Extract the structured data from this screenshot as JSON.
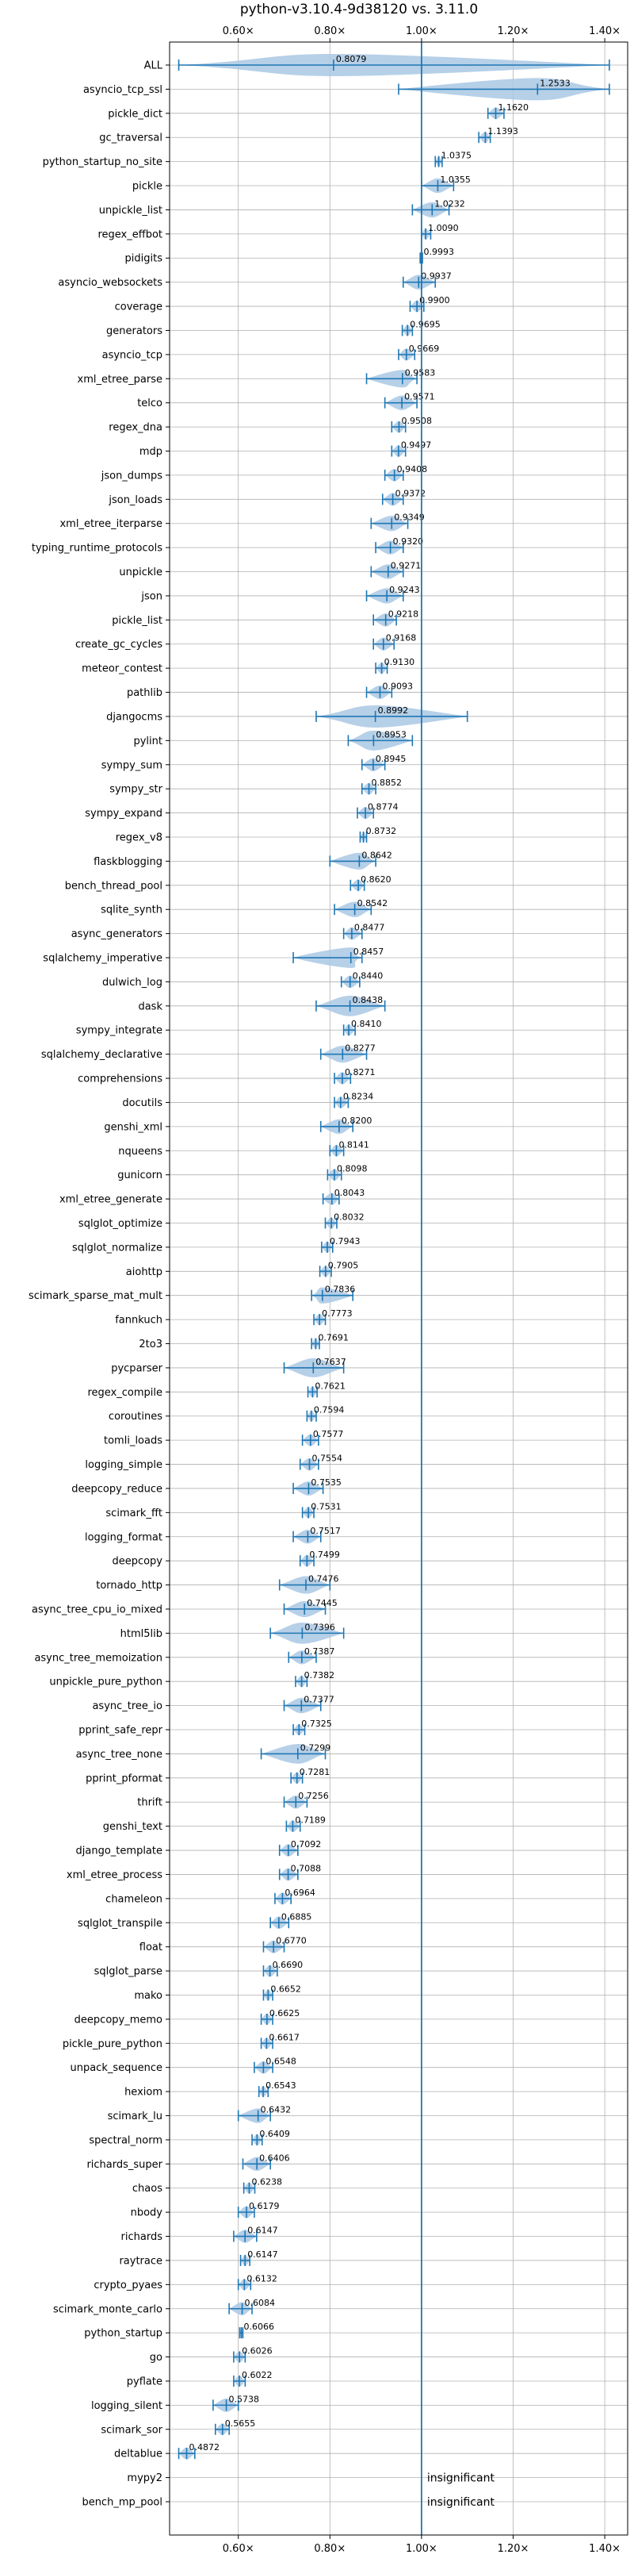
{
  "chart_data": {
    "type": "violin",
    "title": "python-v3.10.4-9d38120 vs. 3.11.0",
    "xlim": [
      0.45,
      1.45
    ],
    "x_ticks": [
      0.6,
      0.8,
      1.0,
      1.2,
      1.4
    ],
    "x_tick_labels": [
      "0.60×",
      "0.80×",
      "1.00×",
      "1.20×",
      "1.40×"
    ],
    "x_tick_positions": [
      "top",
      "bottom"
    ],
    "reference_line": 1.0,
    "grid": true,
    "color": "#1f77b4",
    "violin_fill": "#a9c8e4",
    "insignificant_label": "insignificant",
    "benchmarks": [
      {
        "name": "ALL",
        "value": 0.8079,
        "label": "0.8079",
        "lo": 0.47,
        "hi": 1.41
      },
      {
        "name": "asyncio_tcp_ssl",
        "value": 1.2533,
        "label": "1.2533",
        "lo": 0.95,
        "hi": 1.41
      },
      {
        "name": "pickle_dict",
        "value": 1.162,
        "label": "1.1620",
        "lo": 1.145,
        "hi": 1.18
      },
      {
        "name": "gc_traversal",
        "value": 1.1393,
        "label": "1.1393",
        "lo": 1.125,
        "hi": 1.15
      },
      {
        "name": "python_startup_no_site",
        "value": 1.0375,
        "label": "1.0375",
        "lo": 1.03,
        "hi": 1.045
      },
      {
        "name": "pickle",
        "value": 1.0355,
        "label": "1.0355",
        "lo": 1.0,
        "hi": 1.07
      },
      {
        "name": "unpickle_list",
        "value": 1.0232,
        "label": "1.0232",
        "lo": 0.98,
        "hi": 1.06
      },
      {
        "name": "regex_effbot",
        "value": 1.009,
        "label": "1.0090",
        "lo": 1.0,
        "hi": 1.02
      },
      {
        "name": "pidigits",
        "value": 0.9993,
        "label": "0.9993",
        "lo": 0.997,
        "hi": 1.002
      },
      {
        "name": "asyncio_websockets",
        "value": 0.9937,
        "label": "0.9937",
        "lo": 0.96,
        "hi": 1.03
      },
      {
        "name": "coverage",
        "value": 0.99,
        "label": "0.9900",
        "lo": 0.975,
        "hi": 1.005
      },
      {
        "name": "generators",
        "value": 0.9695,
        "label": "0.9695",
        "lo": 0.958,
        "hi": 0.98
      },
      {
        "name": "asyncio_tcp",
        "value": 0.9669,
        "label": "0.9669",
        "lo": 0.95,
        "hi": 0.985
      },
      {
        "name": "xml_etree_parse",
        "value": 0.9583,
        "label": "0.9583",
        "lo": 0.88,
        "hi": 0.99
      },
      {
        "name": "telco",
        "value": 0.9571,
        "label": "0.9571",
        "lo": 0.92,
        "hi": 0.99
      },
      {
        "name": "regex_dna",
        "value": 0.9508,
        "label": "0.9508",
        "lo": 0.935,
        "hi": 0.965
      },
      {
        "name": "mdp",
        "value": 0.9497,
        "label": "0.9497",
        "lo": 0.935,
        "hi": 0.965
      },
      {
        "name": "json_dumps",
        "value": 0.9408,
        "label": "0.9408",
        "lo": 0.92,
        "hi": 0.96
      },
      {
        "name": "json_loads",
        "value": 0.9372,
        "label": "0.9372",
        "lo": 0.915,
        "hi": 0.96
      },
      {
        "name": "xml_etree_iterparse",
        "value": 0.9349,
        "label": "0.9349",
        "lo": 0.89,
        "hi": 0.97
      },
      {
        "name": "typing_runtime_protocols",
        "value": 0.932,
        "label": "0.9320",
        "lo": 0.9,
        "hi": 0.96
      },
      {
        "name": "unpickle",
        "value": 0.9271,
        "label": "0.9271",
        "lo": 0.89,
        "hi": 0.96
      },
      {
        "name": "json",
        "value": 0.9243,
        "label": "0.9243",
        "lo": 0.88,
        "hi": 0.96
      },
      {
        "name": "pickle_list",
        "value": 0.9218,
        "label": "0.9218",
        "lo": 0.895,
        "hi": 0.945
      },
      {
        "name": "create_gc_cycles",
        "value": 0.9168,
        "label": "0.9168",
        "lo": 0.895,
        "hi": 0.94
      },
      {
        "name": "meteor_contest",
        "value": 0.913,
        "label": "0.9130",
        "lo": 0.9,
        "hi": 0.925
      },
      {
        "name": "pathlib",
        "value": 0.9093,
        "label": "0.9093",
        "lo": 0.88,
        "hi": 0.935
      },
      {
        "name": "djangocms",
        "value": 0.8992,
        "label": "0.8992",
        "lo": 0.77,
        "hi": 1.1
      },
      {
        "name": "pylint",
        "value": 0.8953,
        "label": "0.8953",
        "lo": 0.84,
        "hi": 0.98
      },
      {
        "name": "sympy_sum",
        "value": 0.8945,
        "label": "0.8945",
        "lo": 0.87,
        "hi": 0.92
      },
      {
        "name": "sympy_str",
        "value": 0.8852,
        "label": "0.8852",
        "lo": 0.87,
        "hi": 0.9
      },
      {
        "name": "sympy_expand",
        "value": 0.8774,
        "label": "0.8774",
        "lo": 0.86,
        "hi": 0.895
      },
      {
        "name": "regex_v8",
        "value": 0.8732,
        "label": "0.8732",
        "lo": 0.866,
        "hi": 0.88
      },
      {
        "name": "flaskblogging",
        "value": 0.8642,
        "label": "0.8642",
        "lo": 0.8,
        "hi": 0.9
      },
      {
        "name": "bench_thread_pool",
        "value": 0.862,
        "label": "0.8620",
        "lo": 0.845,
        "hi": 0.875
      },
      {
        "name": "sqlite_synth",
        "value": 0.8542,
        "label": "0.8542",
        "lo": 0.81,
        "hi": 0.89
      },
      {
        "name": "async_generators",
        "value": 0.8477,
        "label": "0.8477",
        "lo": 0.83,
        "hi": 0.87
      },
      {
        "name": "sqlalchemy_imperative",
        "value": 0.8457,
        "label": "0.8457",
        "lo": 0.72,
        "hi": 0.87
      },
      {
        "name": "dulwich_log",
        "value": 0.844,
        "label": "0.8440",
        "lo": 0.825,
        "hi": 0.865
      },
      {
        "name": "dask",
        "value": 0.8438,
        "label": "0.8438",
        "lo": 0.77,
        "hi": 0.92
      },
      {
        "name": "sympy_integrate",
        "value": 0.841,
        "label": "0.8410",
        "lo": 0.83,
        "hi": 0.855
      },
      {
        "name": "sqlalchemy_declarative",
        "value": 0.8277,
        "label": "0.8277",
        "lo": 0.78,
        "hi": 0.88
      },
      {
        "name": "comprehensions",
        "value": 0.8271,
        "label": "0.8271",
        "lo": 0.81,
        "hi": 0.845
      },
      {
        "name": "docutils",
        "value": 0.8234,
        "label": "0.8234",
        "lo": 0.81,
        "hi": 0.84
      },
      {
        "name": "genshi_xml",
        "value": 0.82,
        "label": "0.8200",
        "lo": 0.78,
        "hi": 0.85
      },
      {
        "name": "nqueens",
        "value": 0.8141,
        "label": "0.8141",
        "lo": 0.8,
        "hi": 0.83
      },
      {
        "name": "gunicorn",
        "value": 0.8098,
        "label": "0.8098",
        "lo": 0.795,
        "hi": 0.825
      },
      {
        "name": "xml_etree_generate",
        "value": 0.8043,
        "label": "0.8043",
        "lo": 0.785,
        "hi": 0.82
      },
      {
        "name": "sqlglot_optimize",
        "value": 0.8032,
        "label": "0.8032",
        "lo": 0.79,
        "hi": 0.815
      },
      {
        "name": "sqlglot_normalize",
        "value": 0.7943,
        "label": "0.7943",
        "lo": 0.782,
        "hi": 0.806
      },
      {
        "name": "aiohttp",
        "value": 0.7905,
        "label": "0.7905",
        "lo": 0.778,
        "hi": 0.803
      },
      {
        "name": "scimark_sparse_mat_mult",
        "value": 0.7836,
        "label": "0.7836",
        "lo": 0.76,
        "hi": 0.85
      },
      {
        "name": "fannkuch",
        "value": 0.7773,
        "label": "0.7773",
        "lo": 0.765,
        "hi": 0.79
      },
      {
        "name": "2to3",
        "value": 0.7691,
        "label": "0.7691",
        "lo": 0.76,
        "hi": 0.777
      },
      {
        "name": "pycparser",
        "value": 0.7637,
        "label": "0.7637",
        "lo": 0.7,
        "hi": 0.83
      },
      {
        "name": "regex_compile",
        "value": 0.7621,
        "label": "0.7621",
        "lo": 0.752,
        "hi": 0.772
      },
      {
        "name": "coroutines",
        "value": 0.7594,
        "label": "0.7594",
        "lo": 0.75,
        "hi": 0.77
      },
      {
        "name": "tomli_loads",
        "value": 0.7577,
        "label": "0.7577",
        "lo": 0.74,
        "hi": 0.775
      },
      {
        "name": "logging_simple",
        "value": 0.7554,
        "label": "0.7554",
        "lo": 0.735,
        "hi": 0.775
      },
      {
        "name": "deepcopy_reduce",
        "value": 0.7535,
        "label": "0.7535",
        "lo": 0.72,
        "hi": 0.785
      },
      {
        "name": "scimark_fft",
        "value": 0.7531,
        "label": "0.7531",
        "lo": 0.74,
        "hi": 0.765
      },
      {
        "name": "logging_format",
        "value": 0.7517,
        "label": "0.7517",
        "lo": 0.72,
        "hi": 0.78
      },
      {
        "name": "deepcopy",
        "value": 0.7499,
        "label": "0.7499",
        "lo": 0.735,
        "hi": 0.765
      },
      {
        "name": "tornado_http",
        "value": 0.7476,
        "label": "0.7476",
        "lo": 0.69,
        "hi": 0.8
      },
      {
        "name": "async_tree_cpu_io_mixed",
        "value": 0.7445,
        "label": "0.7445",
        "lo": 0.7,
        "hi": 0.79
      },
      {
        "name": "html5lib",
        "value": 0.7396,
        "label": "0.7396",
        "lo": 0.67,
        "hi": 0.83
      },
      {
        "name": "async_tree_memoization",
        "value": 0.7387,
        "label": "0.7387",
        "lo": 0.71,
        "hi": 0.77
      },
      {
        "name": "unpickle_pure_python",
        "value": 0.7382,
        "label": "0.7382",
        "lo": 0.725,
        "hi": 0.75
      },
      {
        "name": "async_tree_io",
        "value": 0.7377,
        "label": "0.7377",
        "lo": 0.7,
        "hi": 0.78
      },
      {
        "name": "pprint_safe_repr",
        "value": 0.7325,
        "label": "0.7325",
        "lo": 0.72,
        "hi": 0.745
      },
      {
        "name": "async_tree_none",
        "value": 0.7299,
        "label": "0.7299",
        "lo": 0.65,
        "hi": 0.79
      },
      {
        "name": "pprint_pformat",
        "value": 0.7281,
        "label": "0.7281",
        "lo": 0.715,
        "hi": 0.74
      },
      {
        "name": "thrift",
        "value": 0.7256,
        "label": "0.7256",
        "lo": 0.7,
        "hi": 0.75
      },
      {
        "name": "genshi_text",
        "value": 0.7189,
        "label": "0.7189",
        "lo": 0.705,
        "hi": 0.735
      },
      {
        "name": "django_template",
        "value": 0.7092,
        "label": "0.7092",
        "lo": 0.69,
        "hi": 0.73
      },
      {
        "name": "xml_etree_process",
        "value": 0.7088,
        "label": "0.7088",
        "lo": 0.69,
        "hi": 0.73
      },
      {
        "name": "chameleon",
        "value": 0.6964,
        "label": "0.6964",
        "lo": 0.68,
        "hi": 0.715
      },
      {
        "name": "sqlglot_transpile",
        "value": 0.6885,
        "label": "0.6885",
        "lo": 0.67,
        "hi": 0.71
      },
      {
        "name": "float",
        "value": 0.677,
        "label": "0.6770",
        "lo": 0.655,
        "hi": 0.7
      },
      {
        "name": "sqlglot_parse",
        "value": 0.669,
        "label": "0.6690",
        "lo": 0.655,
        "hi": 0.685
      },
      {
        "name": "mako",
        "value": 0.6652,
        "label": "0.6652",
        "lo": 0.655,
        "hi": 0.675
      },
      {
        "name": "deepcopy_memo",
        "value": 0.6625,
        "label": "0.6625",
        "lo": 0.65,
        "hi": 0.675
      },
      {
        "name": "pickle_pure_python",
        "value": 0.6617,
        "label": "0.6617",
        "lo": 0.65,
        "hi": 0.675
      },
      {
        "name": "unpack_sequence",
        "value": 0.6548,
        "label": "0.6548",
        "lo": 0.635,
        "hi": 0.675
      },
      {
        "name": "hexiom",
        "value": 0.6543,
        "label": "0.6543",
        "lo": 0.645,
        "hi": 0.665
      },
      {
        "name": "scimark_lu",
        "value": 0.6432,
        "label": "0.6432",
        "lo": 0.6,
        "hi": 0.67
      },
      {
        "name": "spectral_norm",
        "value": 0.6409,
        "label": "0.6409",
        "lo": 0.63,
        "hi": 0.652
      },
      {
        "name": "richards_super",
        "value": 0.6406,
        "label": "0.6406",
        "lo": 0.61,
        "hi": 0.67
      },
      {
        "name": "chaos",
        "value": 0.6238,
        "label": "0.6238",
        "lo": 0.612,
        "hi": 0.636
      },
      {
        "name": "nbody",
        "value": 0.6179,
        "label": "0.6179",
        "lo": 0.6,
        "hi": 0.635
      },
      {
        "name": "richards",
        "value": 0.6147,
        "label": "0.6147",
        "lo": 0.59,
        "hi": 0.64
      },
      {
        "name": "raytrace",
        "value": 0.6147,
        "label": "0.6147",
        "lo": 0.605,
        "hi": 0.625
      },
      {
        "name": "crypto_pyaes",
        "value": 0.6132,
        "label": "0.6132",
        "lo": 0.6,
        "hi": 0.627
      },
      {
        "name": "scimark_monte_carlo",
        "value": 0.6084,
        "label": "0.6084",
        "lo": 0.58,
        "hi": 0.63
      },
      {
        "name": "python_startup",
        "value": 0.6066,
        "label": "0.6066",
        "lo": 0.603,
        "hi": 0.61
      },
      {
        "name": "go",
        "value": 0.6026,
        "label": "0.6026",
        "lo": 0.59,
        "hi": 0.615
      },
      {
        "name": "pyflate",
        "value": 0.6022,
        "label": "0.6022",
        "lo": 0.59,
        "hi": 0.615
      },
      {
        "name": "logging_silent",
        "value": 0.5738,
        "label": "0.5738",
        "lo": 0.545,
        "hi": 0.6
      },
      {
        "name": "scimark_sor",
        "value": 0.5655,
        "label": "0.5655",
        "lo": 0.55,
        "hi": 0.58
      },
      {
        "name": "deltablue",
        "value": 0.4872,
        "label": "0.4872",
        "lo": 0.47,
        "hi": 0.505
      },
      {
        "name": "mypy2",
        "value": null,
        "label": "insignificant"
      },
      {
        "name": "bench_mp_pool",
        "value": null,
        "label": "insignificant"
      }
    ]
  }
}
